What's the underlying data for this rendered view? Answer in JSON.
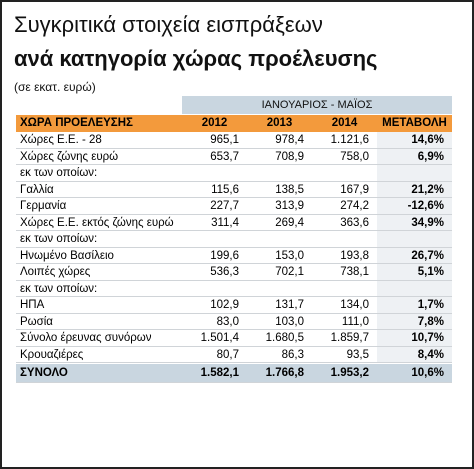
{
  "header": {
    "title": "Συγκριτικά στοιχεία εισπράξεων",
    "subtitle": "ανά κατηγορία χώρας προέλευσης",
    "unit": "(σε εκατ. ευρώ)"
  },
  "table": {
    "period": "ΙΑΝΟΥΑΡΙΟΣ - ΜΑΪΟΣ",
    "columns": [
      "ΧΩΡΑ ΠΡΟΕΛΕΥΣΗΣ",
      "2012",
      "2013",
      "2014",
      "ΜΕΤΑΒΟΛΗ"
    ],
    "rows": [
      [
        "Χώρες Ε.Ε. - 28",
        "965,1",
        "978,4",
        "1.121,6",
        "14,6%"
      ],
      [
        "Χώρες ζώνης ευρώ",
        "653,7",
        "708,9",
        "758,0",
        "6,9%"
      ],
      [
        "εκ των οποίων:"
      ],
      [
        "Γαλλία",
        "115,6",
        "138,5",
        "167,9",
        "21,2%"
      ],
      [
        "Γερμανία",
        "227,7",
        "313,9",
        "274,2",
        "-12,6%"
      ],
      [
        "Χώρες Ε.Ε. εκτός ζώνης ευρώ",
        "311,4",
        "269,4",
        "363,6",
        "34,9%"
      ],
      [
        "εκ των οποίων:"
      ],
      [
        "Ηνωμένο Βασίλειο",
        "199,6",
        "153,0",
        "193,8",
        "26,7%"
      ],
      [
        "Λοιπές χώρες",
        "536,3",
        "702,1",
        "738,1",
        "5,1%"
      ],
      [
        "εκ των οποίων:"
      ],
      [
        "ΗΠΑ",
        "102,9",
        "131,7",
        "134,0",
        "1,7%"
      ],
      [
        "Ρωσία",
        "83,0",
        "103,0",
        "111,0",
        "7,8%"
      ],
      [
        "Σύνολο έρευνας συνόρων",
        "1.501,4",
        "1.680,5",
        "1.859,7",
        "10,7%"
      ],
      [
        "Κρουαζιέρες",
        "80,7",
        "86,3",
        "93,5",
        "8,4%"
      ]
    ],
    "total": [
      "ΣΥΝΟΛΟ",
      "1.582,1",
      "1.766,8",
      "1.953,2",
      "10,6%"
    ]
  }
}
